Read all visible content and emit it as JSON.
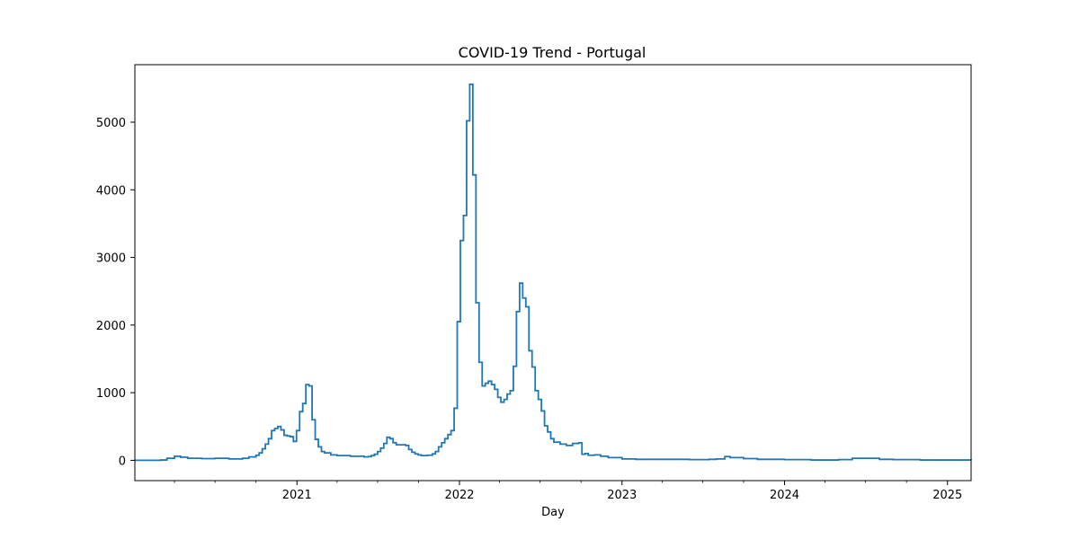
{
  "chart_data": {
    "type": "line",
    "title": "COVID-19 Trend - Portugal",
    "xlabel": "Day",
    "ylabel": "",
    "xlim": [
      "2020-01-03",
      "2025-02-23"
    ],
    "ylim": [
      -300,
      5850
    ],
    "x_ticks": [
      "2021",
      "2022",
      "2023",
      "2024",
      "2025"
    ],
    "y_ticks": [
      0,
      1000,
      2000,
      3000,
      4000,
      5000
    ],
    "grid": false,
    "legend": "none",
    "line_color": "#1f77b4",
    "series": [
      {
        "x": [
          "2020-01-03",
          "2020-03-01",
          "2020-03-15",
          "2020-04-01",
          "2020-04-15",
          "2020-05-01",
          "2020-06-01",
          "2020-07-01",
          "2020-08-01",
          "2020-09-01",
          "2020-09-15",
          "2020-10-01",
          "2020-10-08",
          "2020-10-15",
          "2020-10-22",
          "2020-10-29",
          "2020-11-05",
          "2020-11-12",
          "2020-11-19",
          "2020-11-26",
          "2020-12-03",
          "2020-12-10",
          "2020-12-17",
          "2020-12-24",
          "2020-12-31",
          "2021-01-07",
          "2021-01-14",
          "2021-01-21",
          "2021-01-28",
          "2021-02-04",
          "2021-02-11",
          "2021-02-18",
          "2021-02-25",
          "2021-03-04",
          "2021-03-18",
          "2021-04-01",
          "2021-05-01",
          "2021-06-01",
          "2021-06-10",
          "2021-06-17",
          "2021-06-24",
          "2021-07-01",
          "2021-07-08",
          "2021-07-15",
          "2021-07-22",
          "2021-07-29",
          "2021-08-05",
          "2021-08-12",
          "2021-08-19",
          "2021-08-26",
          "2021-09-02",
          "2021-09-09",
          "2021-09-16",
          "2021-09-23",
          "2021-09-30",
          "2021-10-07",
          "2021-10-21",
          "2021-11-01",
          "2021-11-08",
          "2021-11-15",
          "2021-11-22",
          "2021-11-29",
          "2021-12-06",
          "2021-12-13",
          "2021-12-20",
          "2021-12-27",
          "2022-01-03",
          "2022-01-10",
          "2022-01-17",
          "2022-01-24",
          "2022-01-31",
          "2022-02-07",
          "2022-02-14",
          "2022-02-21",
          "2022-02-28",
          "2022-03-07",
          "2022-03-14",
          "2022-03-21",
          "2022-03-28",
          "2022-04-04",
          "2022-04-11",
          "2022-04-18",
          "2022-04-25",
          "2022-05-02",
          "2022-05-09",
          "2022-05-16",
          "2022-05-23",
          "2022-05-30",
          "2022-06-06",
          "2022-06-13",
          "2022-06-20",
          "2022-06-27",
          "2022-07-04",
          "2022-07-11",
          "2022-07-18",
          "2022-07-25",
          "2022-08-01",
          "2022-08-15",
          "2022-08-29",
          "2022-09-12",
          "2022-09-26",
          "2022-10-03",
          "2022-10-10",
          "2022-10-17",
          "2022-10-31",
          "2022-11-14",
          "2022-12-01",
          "2023-01-01",
          "2023-02-01",
          "2023-04-01",
          "2023-06-01",
          "2023-07-15",
          "2023-08-01",
          "2023-08-20",
          "2023-09-01",
          "2023-10-01",
          "2023-11-01",
          "2024-01-01",
          "2024-03-01",
          "2024-04-01",
          "2024-05-01",
          "2024-06-01",
          "2024-07-01",
          "2024-08-01",
          "2024-09-01",
          "2024-11-01",
          "2025-01-01",
          "2025-02-23"
        ],
        "y": [
          0,
          5,
          30,
          60,
          45,
          30,
          25,
          30,
          20,
          30,
          50,
          75,
          110,
          170,
          240,
          320,
          440,
          470,
          500,
          450,
          370,
          360,
          350,
          280,
          440,
          720,
          840,
          1120,
          1100,
          600,
          310,
          200,
          130,
          110,
          80,
          70,
          60,
          50,
          55,
          70,
          90,
          130,
          180,
          250,
          340,
          320,
          260,
          230,
          230,
          230,
          220,
          160,
          120,
          95,
          80,
          70,
          75,
          95,
          130,
          200,
          260,
          320,
          380,
          440,
          770,
          2050,
          3250,
          3620,
          5020,
          5560,
          4220,
          2330,
          1450,
          1100,
          1140,
          1170,
          1120,
          1050,
          930,
          860,
          900,
          980,
          1030,
          1390,
          2200,
          2620,
          2400,
          2270,
          1620,
          1380,
          1030,
          900,
          730,
          510,
          420,
          320,
          270,
          240,
          220,
          250,
          260,
          90,
          100,
          75,
          80,
          60,
          40,
          20,
          15,
          15,
          10,
          15,
          20,
          55,
          40,
          25,
          15,
          10,
          5,
          5,
          10,
          30,
          30,
          15,
          10,
          5,
          5,
          3
        ]
      }
    ]
  }
}
